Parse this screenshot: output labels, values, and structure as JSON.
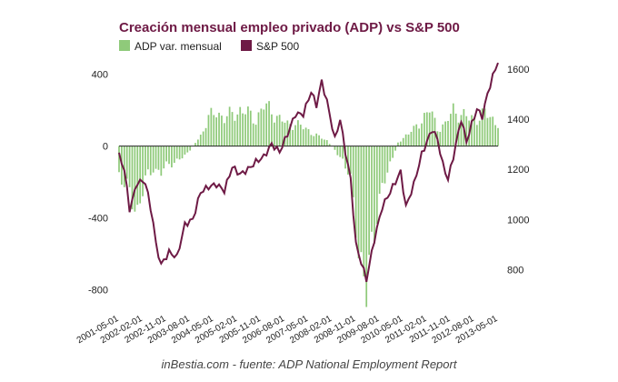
{
  "colors": {
    "adp": "#8fca7a",
    "sp500": "#6e1a45",
    "title": "#6e1a45",
    "zero_line": "#222222"
  },
  "chart_data": {
    "type": "bar+line",
    "title": "Creación mensual empleo privado (ADP) vs S&P 500",
    "footer": "inBestia.com - fuente: ADP National Employment Report",
    "legend": {
      "placement": "top-left",
      "entries": [
        "ADP var. mensual",
        "S&P 500"
      ]
    },
    "grid": false,
    "left_axis": {
      "min": -900,
      "max": 500,
      "ticks": [
        400,
        0,
        -400,
        -800
      ],
      "tick_labels": [
        "400",
        "0",
        "-400",
        "-800"
      ]
    },
    "right_axis": {
      "min": 650,
      "max": 1650,
      "ticks": [
        1600,
        1400,
        1200,
        1000,
        800
      ],
      "tick_labels": [
        "1600",
        "1400",
        "1200",
        "1000",
        "800"
      ]
    },
    "x_tick_labels": [
      "2001-05-01",
      "2002-02-01",
      "2002-11-01",
      "2003-08-01",
      "2004-05-01",
      "2005-02-01",
      "2005-11-01",
      "2006-08-01",
      "2007-05-01",
      "2008-02-01",
      "2008-11-01",
      "2009-08-01",
      "2010-05-01",
      "2011-02-01",
      "2011-11-01",
      "2012-08-01",
      "2013-05-01"
    ],
    "x_start": "2001-05",
    "x_end": "2013-05",
    "adp_points": [
      [
        "2001-05",
        -150
      ],
      [
        "2001-08",
        -250
      ],
      [
        "2001-10",
        -300
      ],
      [
        "2001-12",
        -350
      ],
      [
        "2002-03",
        -200
      ],
      [
        "2002-06",
        -120
      ],
      [
        "2002-09",
        -150
      ],
      [
        "2002-12",
        -100
      ],
      [
        "2003-03",
        -80
      ],
      [
        "2003-06",
        -60
      ],
      [
        "2003-09",
        0
      ],
      [
        "2003-12",
        60
      ],
      [
        "2004-03",
        150
      ],
      [
        "2004-06",
        200
      ],
      [
        "2004-09",
        150
      ],
      [
        "2004-12",
        180
      ],
      [
        "2005-03",
        200
      ],
      [
        "2005-06",
        180
      ],
      [
        "2005-09",
        150
      ],
      [
        "2005-12",
        220
      ],
      [
        "2006-03",
        200
      ],
      [
        "2006-06",
        150
      ],
      [
        "2006-09",
        120
      ],
      [
        "2006-12",
        130
      ],
      [
        "2007-03",
        100
      ],
      [
        "2007-06",
        80
      ],
      [
        "2007-09",
        50
      ],
      [
        "2007-12",
        30
      ],
      [
        "2008-03",
        -20
      ],
      [
        "2008-06",
        -80
      ],
      [
        "2008-09",
        -200
      ],
      [
        "2008-11",
        -400
      ],
      [
        "2009-01",
        -700
      ],
      [
        "2009-03",
        -850
      ],
      [
        "2009-05",
        -550
      ],
      [
        "2009-07",
        -350
      ],
      [
        "2009-09",
        -250
      ],
      [
        "2009-12",
        -100
      ],
      [
        "2010-03",
        20
      ],
      [
        "2010-06",
        60
      ],
      [
        "2010-09",
        90
      ],
      [
        "2010-12",
        150
      ],
      [
        "2011-03",
        200
      ],
      [
        "2011-06",
        100
      ],
      [
        "2011-09",
        120
      ],
      [
        "2011-12",
        200
      ],
      [
        "2012-03",
        180
      ],
      [
        "2012-06",
        150
      ],
      [
        "2012-09",
        160
      ],
      [
        "2012-12",
        180
      ],
      [
        "2013-03",
        150
      ],
      [
        "2013-05",
        130
      ]
    ],
    "sp500_points": [
      [
        "2001-05",
        1255
      ],
      [
        "2001-07",
        1200
      ],
      [
        "2001-09",
        1040
      ],
      [
        "2001-12",
        1150
      ],
      [
        "2002-03",
        1150
      ],
      [
        "2002-06",
        990
      ],
      [
        "2002-07",
        900
      ],
      [
        "2002-09",
        820
      ],
      [
        "2002-12",
        870
      ],
      [
        "2003-03",
        850
      ],
      [
        "2003-06",
        980
      ],
      [
        "2003-09",
        1000
      ],
      [
        "2003-12",
        1110
      ],
      [
        "2004-03",
        1130
      ],
      [
        "2004-06",
        1140
      ],
      [
        "2004-09",
        1115
      ],
      [
        "2004-12",
        1210
      ],
      [
        "2005-03",
        1180
      ],
      [
        "2005-06",
        1200
      ],
      [
        "2005-09",
        1230
      ],
      [
        "2005-12",
        1250
      ],
      [
        "2006-03",
        1300
      ],
      [
        "2006-06",
        1270
      ],
      [
        "2006-09",
        1340
      ],
      [
        "2006-12",
        1420
      ],
      [
        "2007-03",
        1420
      ],
      [
        "2007-06",
        1510
      ],
      [
        "2007-08",
        1455
      ],
      [
        "2007-10",
        1550
      ],
      [
        "2007-12",
        1470
      ],
      [
        "2008-03",
        1320
      ],
      [
        "2008-05",
        1400
      ],
      [
        "2008-07",
        1270
      ],
      [
        "2008-09",
        1160
      ],
      [
        "2008-11",
        900
      ],
      [
        "2009-03",
        760
      ],
      [
        "2009-06",
        920
      ],
      [
        "2009-09",
        1050
      ],
      [
        "2009-12",
        1110
      ],
      [
        "2010-04",
        1190
      ],
      [
        "2010-06",
        1050
      ],
      [
        "2010-09",
        1140
      ],
      [
        "2010-12",
        1260
      ],
      [
        "2011-04",
        1360
      ],
      [
        "2011-06",
        1320
      ],
      [
        "2011-08",
        1220
      ],
      [
        "2011-10",
        1160
      ],
      [
        "2011-12",
        1250
      ],
      [
        "2012-03",
        1400
      ],
      [
        "2012-05",
        1310
      ],
      [
        "2012-07",
        1380
      ],
      [
        "2012-09",
        1440
      ],
      [
        "2012-11",
        1410
      ],
      [
        "2013-01",
        1500
      ],
      [
        "2013-03",
        1570
      ],
      [
        "2013-05",
        1630
      ]
    ]
  }
}
